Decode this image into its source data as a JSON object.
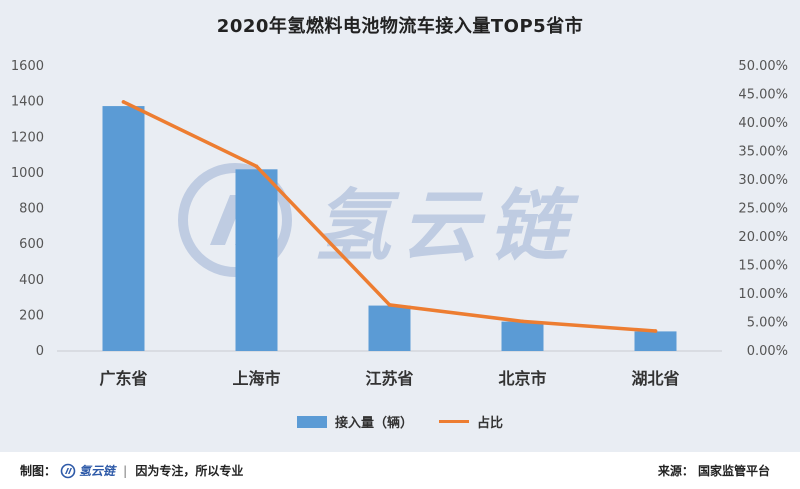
{
  "title": "2020年氢燃料电池物流车接入量TOP5省市",
  "watermark": {
    "text": "氢云链"
  },
  "legend": {
    "bar_label": "接入量（辆）",
    "line_label": "占比"
  },
  "footer": {
    "made_by_label": "制图：",
    "brand": "氢云链",
    "slogan": "因为专注，所以专业",
    "source": "来源：  国家监管平台"
  },
  "colors": {
    "bar": "#5b9bd5",
    "line": "#ed7d31",
    "background": "#e9edf3"
  },
  "chart_data": {
    "type": "bar",
    "categories": [
      "广东省",
      "上海市",
      "江苏省",
      "北京市",
      "湖北省"
    ],
    "series": [
      {
        "name": "接入量（辆）",
        "type": "bar",
        "axis": "left",
        "values": [
          1375,
          1020,
          255,
          165,
          110
        ]
      },
      {
        "name": "占比",
        "type": "line",
        "axis": "right",
        "values": [
          0.437,
          0.324,
          0.081,
          0.052,
          0.035
        ]
      }
    ],
    "ylim": [
      0,
      1600
    ],
    "yticks": [
      "0",
      "200",
      "400",
      "600",
      "800",
      "1000",
      "1200",
      "1400",
      "1600"
    ],
    "y2lim": [
      0,
      0.5
    ],
    "y2ticks": [
      "0.00%",
      "5.00%",
      "10.00%",
      "15.00%",
      "20.00%",
      "25.00%",
      "30.00%",
      "35.00%",
      "40.00%",
      "45.00%",
      "50.00%"
    ],
    "grid": false,
    "legend_position": "bottom"
  }
}
